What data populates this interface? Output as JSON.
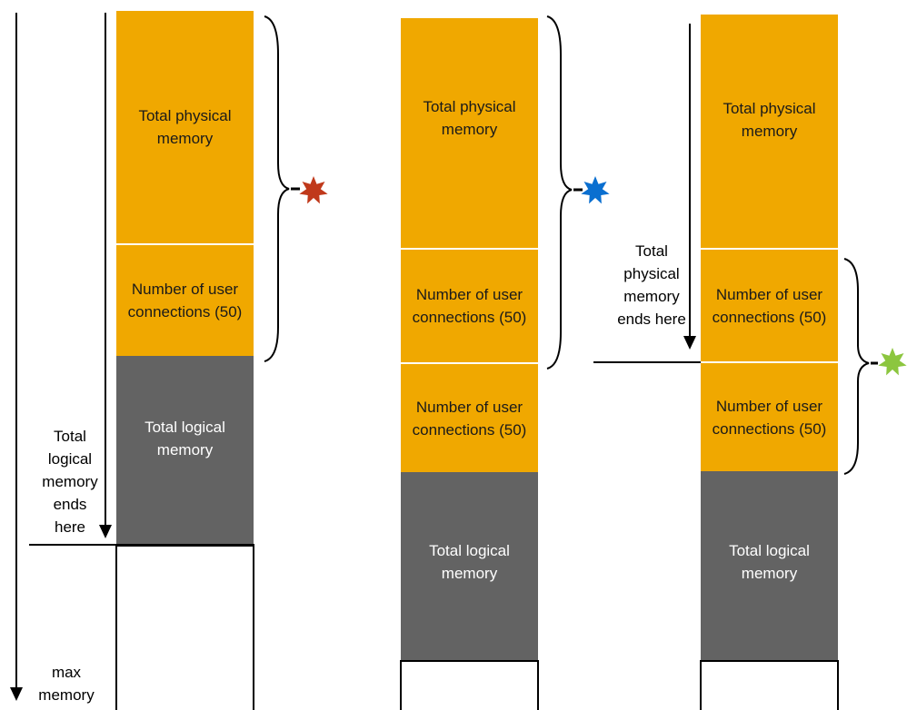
{
  "labels": {
    "total_physical_memory": "Total physical memory",
    "user_connections": "Number of user connections (50)",
    "total_logical_memory": "Total logical memory",
    "logical_ends_here": "Total logical memory ends here",
    "physical_ends_here": "Total physical memory ends here",
    "max_memory": "max memory"
  },
  "colors": {
    "memory_block": "#f0a800",
    "logical_block": "#636363",
    "star_config_1": "#c0391b",
    "star_config_2": "#0a6fd0",
    "star_config_3": "#8cc63f"
  }
}
